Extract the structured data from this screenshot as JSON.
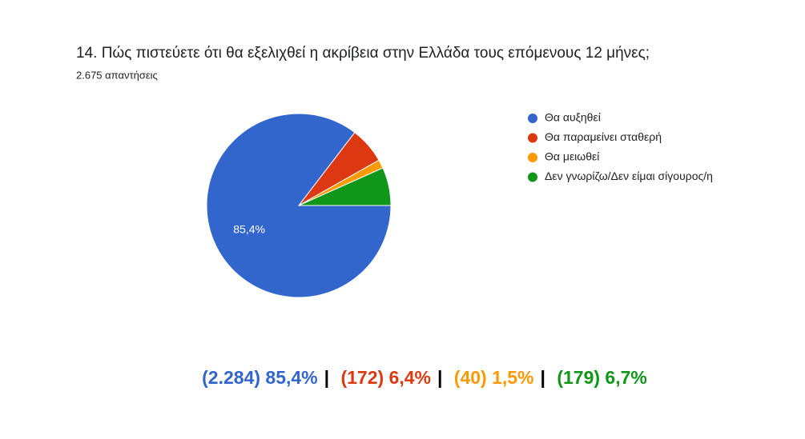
{
  "chart_data": {
    "type": "pie",
    "title": "14. Πώς πιστεύετε ότι θα εξελιχθεί η ακρίβεια στην Ελλάδα τους επόμενους 12 μήνες;",
    "subtitle": "2.675 απαντήσεις",
    "categories": [
      "Θα αυξηθεί",
      "Θα παραμείνει σταθερή",
      "Θα μειωθεί",
      "Δεν γνωρίζω/Δεν είμαι σίγουρος/η"
    ],
    "values": [
      85.4,
      6.4,
      1.5,
      6.7
    ],
    "value_labels": [
      "85,4%",
      null,
      null,
      null
    ],
    "colors": [
      "#3366cc",
      "#dc3912",
      "#ff9900",
      "#109618"
    ],
    "legend": "right",
    "annotation": {
      "parts": [
        "(2.284) 85,4%",
        "(172) 6,4%",
        "(40) 1,5%",
        "(179) 6,7%"
      ],
      "separator": "|"
    }
  }
}
